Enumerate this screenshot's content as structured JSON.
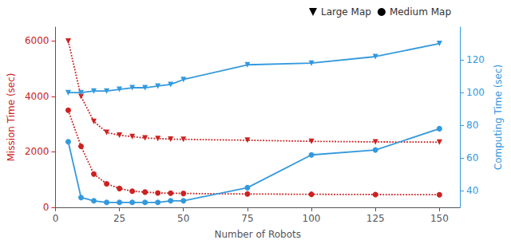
{
  "chart_data": {
    "type": "line",
    "x": [
      5,
      10,
      15,
      20,
      25,
      30,
      35,
      40,
      45,
      50,
      75,
      100,
      125,
      150
    ],
    "xlabel": "Number of Robots",
    "ylabel": "Mission Time (sec)",
    "y2label": "Computing Time (sec)",
    "xlim": [
      0,
      158
    ],
    "xticks": [
      0,
      25,
      50,
      75,
      100,
      125,
      150
    ],
    "ylim": [
      0,
      6500
    ],
    "yticks": [
      0,
      2000,
      4000,
      6000
    ],
    "y2lim": [
      30,
      140
    ],
    "y2ticks": [
      40,
      60,
      80,
      100,
      120
    ],
    "grid": false,
    "legend": "upper right",
    "series": [
      {
        "name": "Large Map",
        "color": "#cc2222",
        "marker": "triangle_down",
        "line_style": "dotted",
        "values": [
          6000,
          4000,
          3100,
          2700,
          2600,
          2550,
          2500,
          2480,
          2460,
          2450,
          2420,
          2380,
          2360,
          2350
        ]
      },
      {
        "name": "Medium Map",
        "color": "#cc2222",
        "marker": "circle",
        "line_style": "dotted",
        "values": [
          3500,
          2200,
          1200,
          850,
          680,
          580,
          550,
          520,
          510,
          500,
          480,
          470,
          460,
          455
        ]
      },
      {
        "name": "Large Map",
        "color": "#3399dd",
        "marker": "triangle_down",
        "line_style": "solid",
        "axis": "y2",
        "values": [
          100,
          100,
          101,
          101,
          102,
          103,
          103,
          104,
          105,
          108,
          117,
          118,
          122,
          130
        ]
      },
      {
        "name": "Medium Map",
        "color": "#3399dd",
        "marker": "circle",
        "line_style": "solid",
        "axis": "y2",
        "values": [
          70,
          36,
          34,
          33,
          33,
          33,
          33,
          33,
          34,
          34,
          42,
          62,
          65,
          78
        ]
      }
    ]
  }
}
